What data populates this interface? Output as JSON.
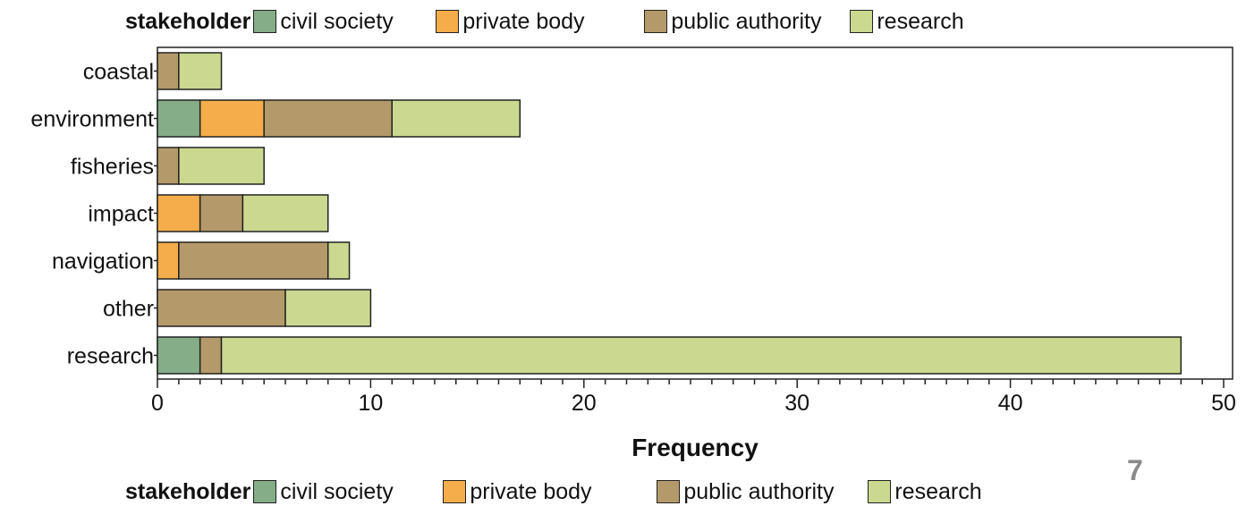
{
  "legend": {
    "title": "stakeholder",
    "entries": [
      {
        "label": "civil society",
        "color": "#84ad88"
      },
      {
        "label": "private body",
        "color": "#f4ad4a"
      },
      {
        "label": "public authority",
        "color": "#b49a6a"
      },
      {
        "label": "research",
        "color": "#cad98f"
      }
    ]
  },
  "page_number": "7",
  "chart_data": {
    "type": "bar",
    "orientation": "horizontal",
    "stacked": true,
    "title": "",
    "xlabel": "Frequency",
    "ylabel": "",
    "xlim": [
      0,
      50
    ],
    "x_ticks": [
      0,
      10,
      20,
      30,
      40,
      50
    ],
    "categories": [
      "coastal",
      "environment",
      "fisheries",
      "impact",
      "navigation",
      "other",
      "research"
    ],
    "series": [
      {
        "name": "civil society",
        "color": "#84ad88",
        "values": [
          0,
          2,
          0,
          0,
          0,
          0,
          2
        ]
      },
      {
        "name": "private body",
        "color": "#f4ad4a",
        "values": [
          0,
          3,
          0,
          2,
          1,
          0,
          0
        ]
      },
      {
        "name": "public authority",
        "color": "#b49a6a",
        "values": [
          1,
          6,
          1,
          2,
          7,
          6,
          1
        ]
      },
      {
        "name": "research",
        "color": "#cad98f",
        "values": [
          2,
          6,
          4,
          4,
          1,
          4,
          45
        ]
      }
    ],
    "legend_position": "top and bottom",
    "grid": false
  }
}
